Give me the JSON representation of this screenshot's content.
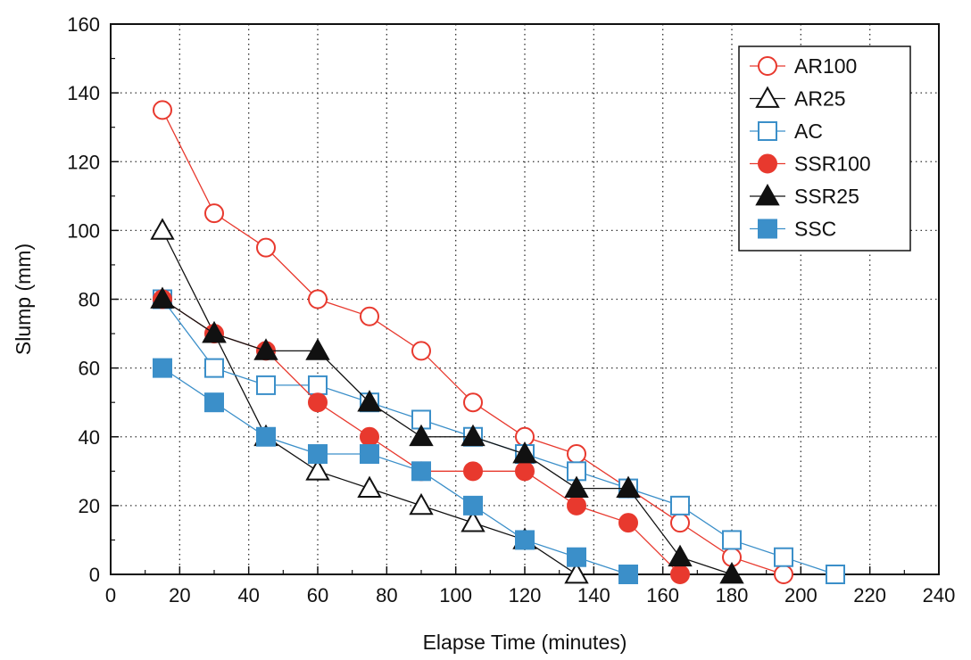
{
  "chart_data": {
    "type": "line",
    "title": "",
    "xlabel": "Elapse Time (minutes)",
    "ylabel": "Slump (mm)",
    "xlim": [
      0,
      240
    ],
    "ylim": [
      0,
      160
    ],
    "xticks": [
      0,
      20,
      40,
      60,
      80,
      100,
      120,
      140,
      160,
      180,
      200,
      220,
      240
    ],
    "yticks": [
      0,
      20,
      40,
      60,
      80,
      100,
      120,
      140,
      160
    ],
    "grid": "dotted",
    "legend_position": "top-right",
    "series": [
      {
        "name": "AR100",
        "marker": "circle-open",
        "color": "#e8392e",
        "x": [
          15,
          30,
          45,
          60,
          75,
          90,
          105,
          120,
          135,
          150,
          165,
          180,
          195
        ],
        "y": [
          135,
          105,
          95,
          80,
          75,
          65,
          50,
          40,
          35,
          25,
          15,
          5,
          0
        ]
      },
      {
        "name": "AR25",
        "marker": "triangle-open",
        "color": "#111111",
        "x": [
          15,
          30,
          45,
          60,
          75,
          90,
          105,
          120,
          135
        ],
        "y": [
          100,
          70,
          40,
          30,
          25,
          20,
          15,
          10,
          0
        ]
      },
      {
        "name": "AC",
        "marker": "square-open",
        "color": "#3b8fc9",
        "x": [
          15,
          30,
          45,
          60,
          75,
          90,
          105,
          120,
          135,
          150,
          165,
          180,
          195,
          210
        ],
        "y": [
          80,
          60,
          55,
          55,
          50,
          45,
          40,
          35,
          30,
          25,
          20,
          10,
          5,
          0
        ]
      },
      {
        "name": "SSR100",
        "marker": "circle-filled",
        "color": "#e8392e",
        "x": [
          15,
          30,
          45,
          60,
          75,
          90,
          105,
          120,
          135,
          150,
          165
        ],
        "y": [
          80,
          70,
          65,
          50,
          40,
          30,
          30,
          30,
          20,
          15,
          0
        ]
      },
      {
        "name": "SSR25",
        "marker": "triangle-filled",
        "color": "#111111",
        "x": [
          15,
          30,
          45,
          60,
          75,
          90,
          105,
          120,
          135,
          150,
          165,
          180
        ],
        "y": [
          80,
          70,
          65,
          65,
          50,
          40,
          40,
          35,
          25,
          25,
          5,
          0
        ]
      },
      {
        "name": "SSC",
        "marker": "square-filled",
        "color": "#3b8fc9",
        "x": [
          15,
          30,
          45,
          60,
          75,
          90,
          105,
          120,
          135,
          150
        ],
        "y": [
          60,
          50,
          40,
          35,
          35,
          30,
          20,
          10,
          5,
          0
        ]
      }
    ]
  }
}
